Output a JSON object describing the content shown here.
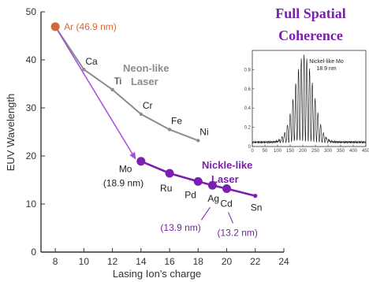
{
  "chart_data": {
    "type": "line",
    "xlabel": "Lasing Ion's charge",
    "ylabel": "EUV Wavelength",
    "xlim": [
      7,
      24
    ],
    "ylim": [
      0,
      50
    ],
    "x_ticks": [
      "8",
      "10",
      "12",
      "14",
      "16",
      "18",
      "20",
      "22",
      "24"
    ],
    "y_ticks": [
      "0",
      "10",
      "20",
      "30",
      "40",
      "50"
    ],
    "ar_point": {
      "label": "Ar (46.9 nm)",
      "x": 8,
      "y": 46.9,
      "color": "#d2693c"
    },
    "series": [
      {
        "name": "Neon-like Laser",
        "label_lines": [
          "Neon-like",
          "Laser"
        ],
        "color": "#8c8c8c",
        "points": [
          {
            "label": "Ca",
            "x": 10,
            "y": 38
          },
          {
            "label": "Ti",
            "x": 12,
            "y": 33.8
          },
          {
            "label": "Cr",
            "x": 14,
            "y": 28.7
          },
          {
            "label": "Fe",
            "x": 16,
            "y": 25.5
          },
          {
            "label": "Ni",
            "x": 18,
            "y": 23.2
          }
        ]
      },
      {
        "name": "Nickle-like Laser",
        "label_lines": [
          "Nickle-like",
          "Laser"
        ],
        "color": "#7a1fb0",
        "points": [
          {
            "label": "Mo",
            "x": 14,
            "y": 18.9
          },
          {
            "label": "Ru",
            "x": 16,
            "y": 16.4
          },
          {
            "label": "Pd",
            "x": 18,
            "y": 14.7
          },
          {
            "label": "Ag",
            "x": 19,
            "y": 13.9
          },
          {
            "label": "Cd",
            "x": 20,
            "y": 13.2
          },
          {
            "label": "Sn",
            "x": 22,
            "y": 11.7
          }
        ]
      }
    ],
    "annotations": {
      "mo": "(18.9 nm)",
      "ag": "(13.9 nm)",
      "cd": "(13.2 nm)"
    },
    "coherence_title": [
      "Full Spatial",
      "Coherence"
    ],
    "inset": {
      "type": "line",
      "title_lines": [
        "Nickel-like Mo",
        "18.9 nm"
      ],
      "x_ticks": [
        "0",
        "50",
        "100",
        "150",
        "200",
        "250",
        "300",
        "350",
        "400",
        "450"
      ],
      "y_ticks": [
        "0",
        "0.2",
        "0.4",
        "0.6",
        "0.8"
      ],
      "xlim": [
        0,
        450
      ],
      "ylim": [
        0,
        1.0
      ]
    }
  }
}
